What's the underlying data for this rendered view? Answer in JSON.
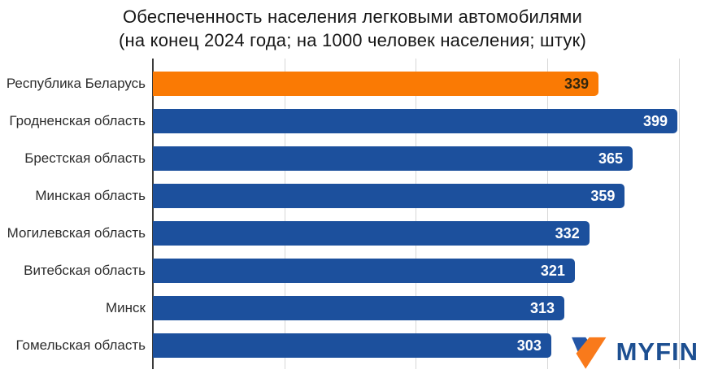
{
  "chart_data": {
    "type": "bar",
    "orientation": "horizontal",
    "title": "Обеспеченность населения легковыми автомобилями (на конец 2024 года; на 1000 человек населения; штук)",
    "title_line1": "Обеспеченность населения легковыми автомобилями",
    "title_line2": "(на конец 2024 года; на 1000 человек населения; штук)",
    "categories": [
      "Республика Беларусь",
      "Гродненская область",
      "Брестская область",
      "Минская область",
      "Могилевская область",
      "Витебская область",
      "Минск",
      "Гомельская область"
    ],
    "values": [
      339,
      399,
      365,
      359,
      332,
      321,
      313,
      303
    ],
    "highlight_index": 0,
    "xlabel": "",
    "ylabel": "",
    "xlim": [
      0,
      420
    ],
    "gridlines_x": [
      100,
      200,
      300,
      400
    ],
    "grid": "vertical-only, no tick labels",
    "legend": "none",
    "value_labels": "inside bar end",
    "colors": {
      "bar": "#1c509d",
      "highlight_bar": "#fa7a04",
      "value_text_on_bar": "#ffffff",
      "value_text_on_highlight": "#33260e",
      "gridline": "#d7d7d7",
      "axis_line": "#3a3a3a",
      "title_text": "#161616",
      "category_text": "#2d2d2d"
    }
  },
  "branding": {
    "logo_text": "MYFIN",
    "logo_icon": "myfin-v-icon",
    "logo_text_color": "#1d4f91",
    "logo_icon_blue": "#2456a6",
    "logo_icon_orange": "#f97a1b"
  }
}
